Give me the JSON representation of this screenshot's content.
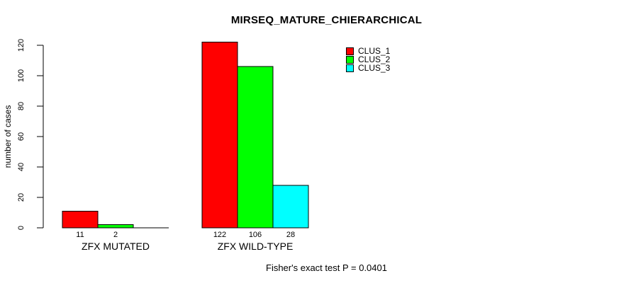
{
  "title": "MIRSEQ_MATURE_CHIERARCHICAL",
  "chart_data": {
    "type": "bar",
    "title": "MIRSEQ_MATURE_CHIERARCHICAL",
    "ylabel": "number of cases",
    "xlabel": "",
    "ylim": [
      0,
      120
    ],
    "yticks": [
      0,
      20,
      40,
      60,
      80,
      100,
      120
    ],
    "categories": [
      "ZFX MUTATED",
      "ZFX WILD-TYPE"
    ],
    "series": [
      {
        "name": "CLUS_1",
        "color": "#ff0000",
        "values": [
          11,
          122
        ]
      },
      {
        "name": "CLUS_2",
        "color": "#00ff00",
        "values": [
          2,
          106
        ]
      },
      {
        "name": "CLUS_3",
        "color": "#00ffff",
        "values": [
          0,
          28
        ]
      }
    ],
    "value_labels": [
      [
        "11",
        "2",
        null
      ],
      [
        "122",
        "106",
        "28"
      ]
    ],
    "legend": {
      "position": "top-right",
      "entries": [
        {
          "label": "CLUS_1",
          "color": "#ff0000"
        },
        {
          "label": "CLUS_2",
          "color": "#00ff00"
        },
        {
          "label": "CLUS_3",
          "color": "#00ffff"
        }
      ]
    },
    "grid": false,
    "annotation": "Fisher's exact test P = 0.0401",
    "bar_border_color": "#000000",
    "axis_color": "#000000",
    "background_color": "#ffffff"
  }
}
